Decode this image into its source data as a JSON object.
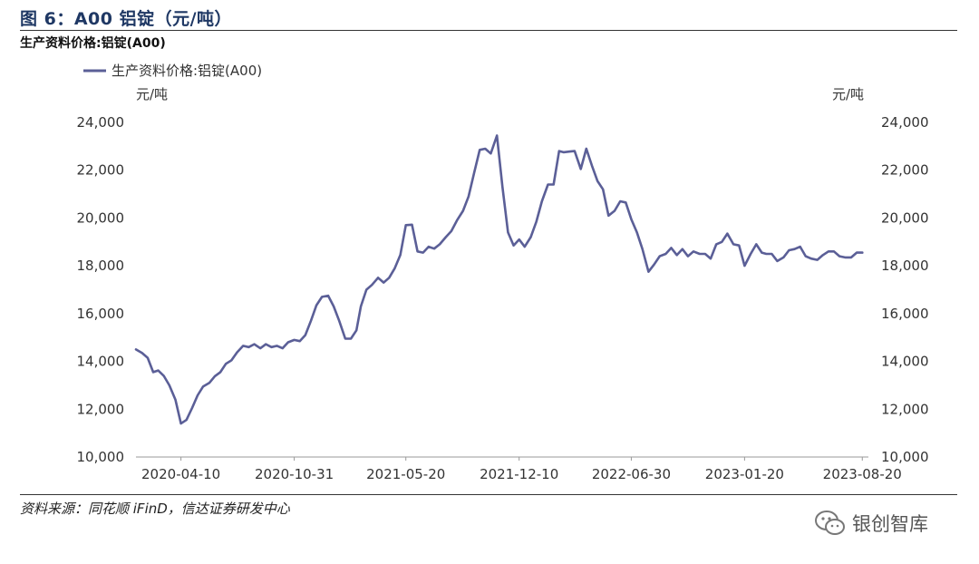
{
  "figure": {
    "title": "图 6：A00 铝锭（元/吨）",
    "subtitle": "生产资料价格:铝锭(A00)",
    "source": "资料来源：同花顺 iFinD，信达证券研发中心"
  },
  "watermark": {
    "text": "银创智库",
    "icon": "wechat-icon"
  },
  "chart_data": {
    "type": "line",
    "y_unit_left": "元/吨",
    "y_unit_right": "元/吨",
    "ylim": [
      10000,
      24000
    ],
    "yticks": [
      10000,
      12000,
      14000,
      16000,
      18000,
      20000,
      22000,
      24000
    ],
    "ytick_labels": [
      "10,000",
      "12,000",
      "14,000",
      "16,000",
      "18,000",
      "20,000",
      "22,000",
      "24,000"
    ],
    "xlim": [
      "2020-01-20",
      "2023-08-31"
    ],
    "xticks": [
      "2020-04-10",
      "2020-10-31",
      "2021-05-20",
      "2021-12-10",
      "2022-06-30",
      "2023-01-20",
      "2023-08-20"
    ],
    "legend_position": "top-left",
    "grid": false,
    "line_color": "#5b5f97",
    "series": [
      {
        "name": "生产资料价格:铝锭(A00)",
        "points": [
          [
            "2020-01-20",
            14500
          ],
          [
            "2020-01-31",
            14350
          ],
          [
            "2020-02-10",
            14150
          ],
          [
            "2020-02-20",
            13550
          ],
          [
            "2020-02-29",
            13620
          ],
          [
            "2020-03-10",
            13400
          ],
          [
            "2020-03-20",
            13000
          ],
          [
            "2020-03-31",
            12400
          ],
          [
            "2020-04-10",
            11400
          ],
          [
            "2020-04-20",
            11550
          ],
          [
            "2020-04-30",
            12050
          ],
          [
            "2020-05-10",
            12580
          ],
          [
            "2020-05-20",
            12950
          ],
          [
            "2020-05-31",
            13100
          ],
          [
            "2020-06-10",
            13380
          ],
          [
            "2020-06-20",
            13550
          ],
          [
            "2020-06-30",
            13900
          ],
          [
            "2020-07-10",
            14050
          ],
          [
            "2020-07-20",
            14380
          ],
          [
            "2020-07-31",
            14650
          ],
          [
            "2020-08-10",
            14600
          ],
          [
            "2020-08-20",
            14720
          ],
          [
            "2020-08-31",
            14550
          ],
          [
            "2020-09-10",
            14720
          ],
          [
            "2020-09-20",
            14600
          ],
          [
            "2020-09-30",
            14650
          ],
          [
            "2020-10-10",
            14550
          ],
          [
            "2020-10-20",
            14800
          ],
          [
            "2020-10-31",
            14900
          ],
          [
            "2020-11-10",
            14850
          ],
          [
            "2020-11-20",
            15100
          ],
          [
            "2020-11-30",
            15700
          ],
          [
            "2020-12-10",
            16350
          ],
          [
            "2020-12-20",
            16700
          ],
          [
            "2020-12-31",
            16750
          ],
          [
            "2021-01-10",
            16300
          ],
          [
            "2021-01-20",
            15700
          ],
          [
            "2021-01-31",
            14950
          ],
          [
            "2021-02-10",
            14950
          ],
          [
            "2021-02-20",
            15300
          ],
          [
            "2021-02-28",
            16300
          ],
          [
            "2021-03-10",
            17000
          ],
          [
            "2021-03-20",
            17200
          ],
          [
            "2021-03-31",
            17500
          ],
          [
            "2021-04-10",
            17300
          ],
          [
            "2021-04-20",
            17500
          ],
          [
            "2021-04-30",
            17900
          ],
          [
            "2021-05-10",
            18450
          ],
          [
            "2021-05-20",
            19700
          ],
          [
            "2021-05-31",
            19720
          ],
          [
            "2021-06-10",
            18600
          ],
          [
            "2021-06-20",
            18550
          ],
          [
            "2021-06-30",
            18800
          ],
          [
            "2021-07-10",
            18720
          ],
          [
            "2021-07-20",
            18900
          ],
          [
            "2021-07-31",
            19200
          ],
          [
            "2021-08-10",
            19450
          ],
          [
            "2021-08-20",
            19900
          ],
          [
            "2021-08-31",
            20300
          ],
          [
            "2021-09-10",
            20900
          ],
          [
            "2021-09-20",
            21900
          ],
          [
            "2021-09-30",
            22850
          ],
          [
            "2021-10-10",
            22900
          ],
          [
            "2021-10-20",
            22700
          ],
          [
            "2021-10-31",
            23450
          ],
          [
            "2021-11-10",
            21300
          ],
          [
            "2021-11-20",
            19400
          ],
          [
            "2021-11-30",
            18850
          ],
          [
            "2021-12-10",
            19100
          ],
          [
            "2021-12-20",
            18800
          ],
          [
            "2021-12-31",
            19200
          ],
          [
            "2022-01-10",
            19850
          ],
          [
            "2022-01-20",
            20700
          ],
          [
            "2022-01-31",
            21400
          ],
          [
            "2022-02-10",
            21400
          ],
          [
            "2022-02-20",
            22800
          ],
          [
            "2022-02-28",
            22750
          ],
          [
            "2022-03-10",
            22780
          ],
          [
            "2022-03-20",
            22800
          ],
          [
            "2022-03-31",
            22050
          ],
          [
            "2022-04-10",
            22900
          ],
          [
            "2022-04-20",
            22200
          ],
          [
            "2022-04-30",
            21550
          ],
          [
            "2022-05-10",
            21200
          ],
          [
            "2022-05-20",
            20100
          ],
          [
            "2022-05-31",
            20300
          ],
          [
            "2022-06-10",
            20700
          ],
          [
            "2022-06-20",
            20650
          ],
          [
            "2022-06-30",
            19950
          ],
          [
            "2022-07-10",
            19400
          ],
          [
            "2022-07-20",
            18700
          ],
          [
            "2022-07-31",
            17750
          ],
          [
            "2022-08-10",
            18050
          ],
          [
            "2022-08-20",
            18400
          ],
          [
            "2022-08-31",
            18500
          ],
          [
            "2022-09-10",
            18750
          ],
          [
            "2022-09-20",
            18450
          ],
          [
            "2022-09-30",
            18700
          ],
          [
            "2022-10-10",
            18400
          ],
          [
            "2022-10-20",
            18600
          ],
          [
            "2022-10-31",
            18500
          ],
          [
            "2022-11-10",
            18500
          ],
          [
            "2022-11-20",
            18300
          ],
          [
            "2022-11-30",
            18900
          ],
          [
            "2022-12-10",
            19000
          ],
          [
            "2022-12-20",
            19350
          ],
          [
            "2022-12-31",
            18900
          ],
          [
            "2023-01-10",
            18850
          ],
          [
            "2023-01-20",
            18000
          ],
          [
            "2023-01-31",
            18500
          ],
          [
            "2023-02-10",
            18900
          ],
          [
            "2023-02-20",
            18550
          ],
          [
            "2023-02-28",
            18500
          ],
          [
            "2023-03-10",
            18500
          ],
          [
            "2023-03-20",
            18200
          ],
          [
            "2023-03-31",
            18350
          ],
          [
            "2023-04-10",
            18650
          ],
          [
            "2023-04-20",
            18700
          ],
          [
            "2023-04-30",
            18800
          ],
          [
            "2023-05-10",
            18400
          ],
          [
            "2023-05-20",
            18300
          ],
          [
            "2023-05-31",
            18250
          ],
          [
            "2023-06-10",
            18450
          ],
          [
            "2023-06-20",
            18600
          ],
          [
            "2023-06-30",
            18600
          ],
          [
            "2023-07-10",
            18400
          ],
          [
            "2023-07-20",
            18350
          ],
          [
            "2023-07-31",
            18350
          ],
          [
            "2023-08-10",
            18550
          ],
          [
            "2023-08-20",
            18550
          ]
        ]
      }
    ]
  }
}
